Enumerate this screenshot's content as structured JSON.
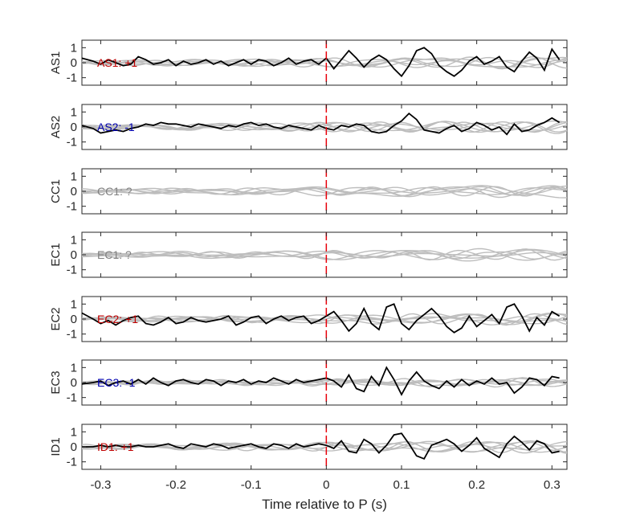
{
  "chart_data": {
    "type": "line",
    "xlabel": "Time relative to P (s)",
    "xlim": [
      -0.325,
      0.32
    ],
    "ylim": [
      -1.5,
      1.5
    ],
    "xticks": [
      -0.3,
      -0.2,
      -0.1,
      0,
      0.1,
      0.2,
      0.3
    ],
    "xtick_labels": [
      "-0.3",
      "-0.2",
      "-0.1",
      "0",
      "0.1",
      "0.2",
      "0.3"
    ],
    "yticks": [
      1,
      0,
      -1
    ],
    "ytick_labels": [
      "1",
      "0",
      "-1"
    ],
    "marker_time": 0,
    "colors": {
      "main": "#000000",
      "others": "#bdbdbd",
      "marker": "#e8000b",
      "red": "#c00000",
      "blue": "#0000b0",
      "gray": "#808080"
    },
    "panels": [
      {
        "label": "AS1",
        "annotation": "AS1: +1",
        "annotation_color": "#c00000",
        "main_series": {
          "x": [
            -0.325,
            -0.31,
            -0.3,
            -0.29,
            -0.28,
            -0.27,
            -0.26,
            -0.25,
            -0.24,
            -0.23,
            -0.22,
            -0.21,
            -0.2,
            -0.19,
            -0.18,
            -0.17,
            -0.16,
            -0.15,
            -0.14,
            -0.13,
            -0.12,
            -0.11,
            -0.1,
            -0.09,
            -0.08,
            -0.07,
            -0.06,
            -0.05,
            -0.04,
            -0.03,
            -0.02,
            -0.01,
            0,
            0.01,
            0.02,
            0.03,
            0.04,
            0.05,
            0.06,
            0.07,
            0.08,
            0.09,
            0.1,
            0.11,
            0.12,
            0.13,
            0.14,
            0.15,
            0.16,
            0.17,
            0.18,
            0.19,
            0.2,
            0.21,
            0.22,
            0.23,
            0.24,
            0.25,
            0.26,
            0.27,
            0.28,
            0.29,
            0.3,
            0.31
          ],
          "y": [
            0.3,
            0.1,
            -0.1,
            0.2,
            0,
            -0.2,
            -0.1,
            0.4,
            0.2,
            -0.1,
            0,
            0.2,
            -0.2,
            0.1,
            -0.1,
            0,
            0.2,
            -0.1,
            0.1,
            -0.2,
            0,
            0.2,
            -0.1,
            0.2,
            0.1,
            -0.2,
            0,
            0.3,
            -0.1,
            0.1,
            0.2,
            -0.1,
            0.3,
            -0.4,
            0.2,
            0.8,
            0.3,
            -0.3,
            0.2,
            0.5,
            0.2,
            -0.4,
            -0.9,
            -0.2,
            0.8,
            1.0,
            0.6,
            -0.2,
            -0.6,
            -0.9,
            -0.5,
            0.1,
            0.4,
            -0.1,
            0.1,
            0.4,
            -0.3,
            -0.6,
            0.1,
            0.7,
            0.3,
            -0.5,
            0.9,
            0.2
          ]
        }
      },
      {
        "label": "AS2",
        "annotation": "AS2: -1",
        "annotation_color": "#0000b0",
        "main_series": {
          "x": [
            -0.325,
            -0.31,
            -0.3,
            -0.29,
            -0.28,
            -0.27,
            -0.26,
            -0.25,
            -0.24,
            -0.23,
            -0.22,
            -0.21,
            -0.2,
            -0.19,
            -0.18,
            -0.17,
            -0.16,
            -0.15,
            -0.14,
            -0.13,
            -0.12,
            -0.11,
            -0.1,
            -0.09,
            -0.08,
            -0.07,
            -0.06,
            -0.05,
            -0.04,
            -0.03,
            -0.02,
            -0.01,
            0,
            0.01,
            0.02,
            0.03,
            0.04,
            0.05,
            0.06,
            0.07,
            0.08,
            0.09,
            0.1,
            0.11,
            0.12,
            0.13,
            0.14,
            0.15,
            0.16,
            0.17,
            0.18,
            0.19,
            0.2,
            0.21,
            0.22,
            0.23,
            0.24,
            0.25,
            0.26,
            0.27,
            0.28,
            0.29,
            0.3,
            0.31
          ],
          "y": [
            0.1,
            -0.1,
            -0.4,
            -0.3,
            -0.2,
            -0.3,
            -0.1,
            0,
            0.2,
            0.1,
            0.3,
            0.2,
            0.2,
            0.1,
            0,
            0.2,
            0.1,
            0,
            -0.1,
            0.1,
            0,
            0.2,
            0.3,
            0.1,
            0.2,
            0,
            -0.1,
            0.1,
            0,
            -0.1,
            -0.2,
            0.1,
            -0.1,
            -0.2,
            0.1,
            0,
            0.2,
            0.1,
            -0.3,
            -0.4,
            -0.3,
            0.1,
            0.4,
            0.9,
            0.5,
            -0.2,
            -0.3,
            -0.4,
            -0.1,
            0.1,
            -0.3,
            -0.1,
            0.3,
            0.1,
            -0.2,
            0,
            -0.5,
            0.2,
            -0.3,
            -0.2,
            0.1,
            0.3,
            0.6,
            0.3
          ]
        }
      },
      {
        "label": "CC1",
        "annotation": "CC1: ?",
        "annotation_color": "#808080",
        "main_series": null
      },
      {
        "label": "EC1",
        "annotation": "EC1: ?",
        "annotation_color": "#808080",
        "main_series": null
      },
      {
        "label": "EC2",
        "annotation": "EC2: +1",
        "annotation_color": "#c00000",
        "main_series": {
          "x": [
            -0.325,
            -0.31,
            -0.3,
            -0.29,
            -0.28,
            -0.27,
            -0.26,
            -0.25,
            -0.24,
            -0.23,
            -0.22,
            -0.21,
            -0.2,
            -0.19,
            -0.18,
            -0.17,
            -0.16,
            -0.15,
            -0.14,
            -0.13,
            -0.12,
            -0.11,
            -0.1,
            -0.09,
            -0.08,
            -0.07,
            -0.06,
            -0.05,
            -0.04,
            -0.03,
            -0.02,
            -0.01,
            0,
            0.01,
            0.02,
            0.03,
            0.04,
            0.05,
            0.06,
            0.07,
            0.08,
            0.09,
            0.1,
            0.11,
            0.12,
            0.13,
            0.14,
            0.15,
            0.16,
            0.17,
            0.18,
            0.19,
            0.2,
            0.21,
            0.22,
            0.23,
            0.24,
            0.25,
            0.26,
            0.27,
            0.28,
            0.29,
            0.3,
            0.31
          ],
          "y": [
            0.4,
            0,
            -0.3,
            -0.1,
            -0.4,
            -0.1,
            0.1,
            0.2,
            -0.3,
            -0.4,
            -0.2,
            0.1,
            -0.3,
            -0.2,
            0.1,
            -0.1,
            -0.2,
            -0.1,
            0,
            0.2,
            -0.4,
            -0.2,
            0.1,
            0.2,
            -0.3,
            0,
            0.2,
            -0.1,
            0.1,
            0.2,
            -0.3,
            -0.1,
            0.2,
            0.5,
            -0.1,
            -0.8,
            -0.3,
            0.7,
            -0.3,
            -0.7,
            0.8,
            1.0,
            -0.3,
            -0.7,
            -0.1,
            0.3,
            0.7,
            0.2,
            -0.5,
            -0.9,
            -0.6,
            0.2,
            -0.5,
            -0.1,
            0.3,
            -0.3,
            0.8,
            1.0,
            0.2,
            -0.8,
            0.1,
            -0.4,
            0.5,
            0.2
          ]
        }
      },
      {
        "label": "EC3",
        "annotation": "EC3: -1",
        "annotation_color": "#0000b0",
        "main_series": {
          "x": [
            -0.325,
            -0.31,
            -0.3,
            -0.29,
            -0.28,
            -0.27,
            -0.26,
            -0.25,
            -0.24,
            -0.23,
            -0.22,
            -0.21,
            -0.2,
            -0.19,
            -0.18,
            -0.17,
            -0.16,
            -0.15,
            -0.14,
            -0.13,
            -0.12,
            -0.11,
            -0.1,
            -0.09,
            -0.08,
            -0.07,
            -0.06,
            -0.05,
            -0.04,
            -0.03,
            -0.02,
            -0.01,
            0,
            0.01,
            0.02,
            0.03,
            0.04,
            0.05,
            0.06,
            0.07,
            0.08,
            0.09,
            0.1,
            0.11,
            0.12,
            0.13,
            0.14,
            0.15,
            0.16,
            0.17,
            0.18,
            0.19,
            0.2,
            0.21,
            0.22,
            0.23,
            0.24,
            0.25,
            0.26,
            0.27,
            0.28,
            0.29,
            0.3,
            0.31
          ],
          "y": [
            -0.1,
            0,
            0.1,
            -0.2,
            0,
            0.1,
            -0.1,
            0.2,
            -0.1,
            0.3,
            0,
            -0.2,
            0.1,
            0.2,
            0,
            -0.1,
            0.2,
            0.1,
            -0.2,
            0.1,
            0,
            0.2,
            -0.1,
            0.1,
            0,
            0.3,
            0.1,
            -0.1,
            0.2,
            0,
            0.1,
            0.2,
            0.3,
            0.1,
            -0.3,
            0.5,
            -0.4,
            -0.6,
            0.4,
            -0.2,
            1.0,
            0.2,
            -0.8,
            0.1,
            0.7,
            0.1,
            -0.2,
            -0.4,
            0.1,
            -0.3,
            0.2,
            -0.2,
            0.1,
            -0.1,
            0.3,
            -0.1,
            0,
            -0.7,
            -0.3,
            0.3,
            0.2,
            -0.2,
            0.4,
            0.3
          ]
        }
      },
      {
        "label": "ID1",
        "annotation": "ID1: +1",
        "annotation_color": "#c00000",
        "main_series": {
          "x": [
            -0.325,
            -0.31,
            -0.3,
            -0.29,
            -0.28,
            -0.27,
            -0.26,
            -0.25,
            -0.24,
            -0.23,
            -0.22,
            -0.21,
            -0.2,
            -0.19,
            -0.18,
            -0.17,
            -0.16,
            -0.15,
            -0.14,
            -0.13,
            -0.12,
            -0.11,
            -0.1,
            -0.09,
            -0.08,
            -0.07,
            -0.06,
            -0.05,
            -0.04,
            -0.03,
            -0.02,
            -0.01,
            0,
            0.01,
            0.02,
            0.03,
            0.04,
            0.05,
            0.06,
            0.07,
            0.08,
            0.09,
            0.1,
            0.11,
            0.12,
            0.13,
            0.14,
            0.15,
            0.16,
            0.17,
            0.18,
            0.19,
            0.2,
            0.21,
            0.22,
            0.23,
            0.24,
            0.25,
            0.26,
            0.27,
            0.28,
            0.29,
            0.3,
            0.31
          ],
          "y": [
            0,
            0,
            0.1,
            0,
            0.1,
            0,
            0,
            0.1,
            0,
            0,
            0.1,
            0.2,
            0,
            -0.1,
            0.2,
            0.1,
            0,
            0.2,
            0.1,
            -0.1,
            0,
            0.1,
            0.2,
            0,
            -0.1,
            0.2,
            0.1,
            -0.1,
            0.2,
            0,
            0.1,
            0.2,
            0.1,
            -0.1,
            0.4,
            -0.3,
            -0.4,
            0.5,
            0.2,
            -0.4,
            0.1,
            0.8,
            0.9,
            0.2,
            -0.6,
            -0.8,
            0.1,
            0.3,
            0.5,
            0.2,
            -0.3,
            0.1,
            0.6,
            -0.1,
            -0.4,
            -0.7,
            0.2,
            0.7,
            0.3,
            -0.2,
            0.4,
            0.2,
            -0.4,
            -0.3
          ]
        }
      }
    ]
  }
}
